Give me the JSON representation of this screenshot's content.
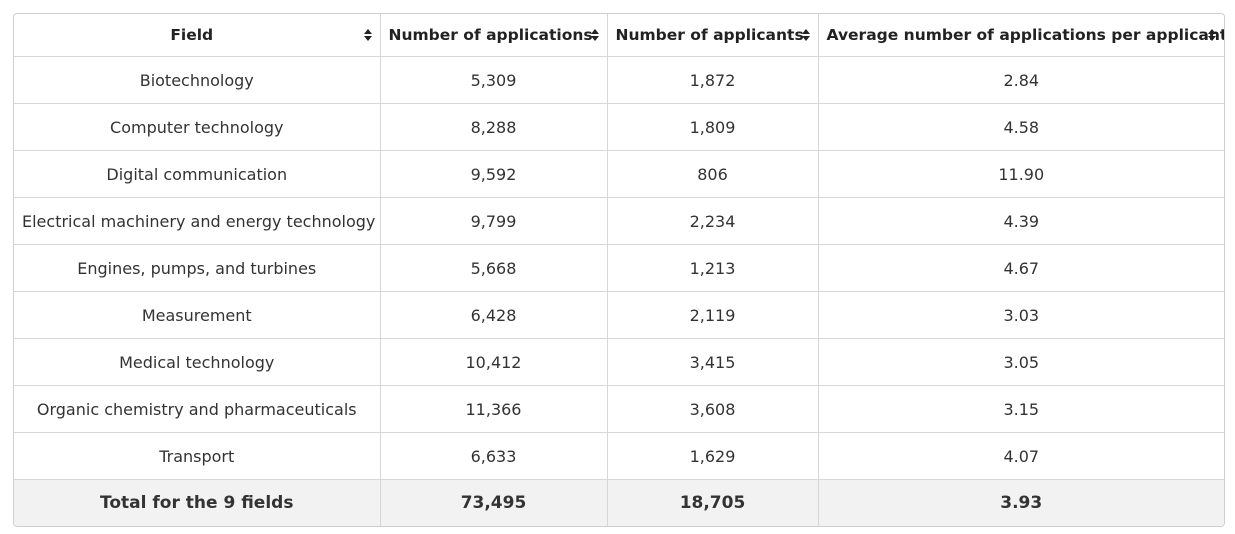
{
  "table": {
    "headers": [
      {
        "label": "Field",
        "sort_icon": "sort-updown-icon"
      },
      {
        "label": "Number of applications",
        "sort_icon": "sort-updown-icon"
      },
      {
        "label": "Number of applicants",
        "sort_icon": "sort-updown-icon"
      },
      {
        "label": "Average number of applications per applicant",
        "sort_icon": "sort-updown-icon"
      }
    ],
    "rows": [
      [
        "Biotechnology",
        "5,309",
        "1,872",
        "2.84"
      ],
      [
        "Computer technology",
        "8,288",
        "1,809",
        "4.58"
      ],
      [
        "Digital communication",
        "9,592",
        "806",
        "11.90"
      ],
      [
        "Electrical machinery and energy technology",
        "9,799",
        "2,234",
        "4.39"
      ],
      [
        "Engines, pumps, and turbines",
        "5,668",
        "1,213",
        "4.67"
      ],
      [
        "Measurement",
        "6,428",
        "2,119",
        "3.03"
      ],
      [
        "Medical technology",
        "10,412",
        "3,415",
        "3.05"
      ],
      [
        "Organic chemistry and pharmaceuticals",
        "11,366",
        "3,608",
        "3.15"
      ],
      [
        "Transport",
        "6,633",
        "1,629",
        "4.07"
      ]
    ],
    "total": [
      "Total for the 9 fields",
      "73,495",
      "18,705",
      "3.93"
    ]
  },
  "colors": {
    "border": "#d6d6d6",
    "total_row_bg": "#f2f2f2",
    "text": "#222222"
  }
}
